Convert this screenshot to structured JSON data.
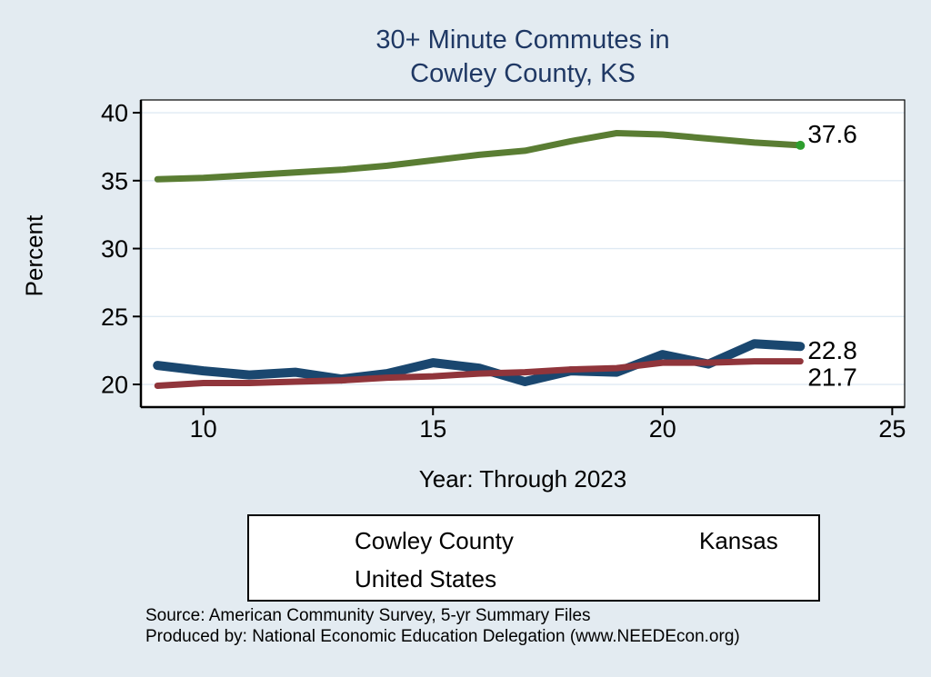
{
  "title": {
    "line1": "30+ Minute Commutes in",
    "line2": "Cowley County, KS"
  },
  "axes": {
    "y_label": "Percent",
    "x_label": "Year: Through 2023",
    "y_ticks": [
      20,
      25,
      30,
      35,
      40
    ],
    "x_ticks": [
      10,
      15,
      20,
      25
    ]
  },
  "chart_data": {
    "type": "line",
    "title": "30+ Minute Commutes in Cowley County, KS",
    "xlabel": "Year: Through 2023",
    "ylabel": "Percent",
    "xlim": [
      8.64,
      25.27
    ],
    "ylim": [
      18.33,
      40.94
    ],
    "grid": true,
    "legend_position": "bottom",
    "x": [
      9,
      10,
      11,
      12,
      13,
      14,
      15,
      16,
      17,
      18,
      19,
      20,
      21,
      22,
      23
    ],
    "series": [
      {
        "name": "Cowley County",
        "color": "#1a476f",
        "line_width": 10,
        "values": [
          21.4,
          21.0,
          20.7,
          20.9,
          20.4,
          20.8,
          21.6,
          21.2,
          20.2,
          21.0,
          20.9,
          22.2,
          21.5,
          23.0,
          22.8
        ],
        "end_label": "22.8"
      },
      {
        "name": "Kansas",
        "color": "#90353b",
        "line_width": 7,
        "values": [
          19.9,
          20.1,
          20.1,
          20.2,
          20.3,
          20.5,
          20.6,
          20.8,
          20.9,
          21.1,
          21.2,
          21.6,
          21.6,
          21.7,
          21.7
        ],
        "end_label": "21.7"
      },
      {
        "name": "United States",
        "color": "#5a7d33",
        "line_width": 7,
        "values": [
          35.1,
          35.2,
          35.4,
          35.6,
          35.8,
          36.1,
          36.5,
          36.9,
          37.2,
          37.9,
          38.5,
          38.4,
          38.1,
          37.8,
          37.6
        ],
        "end_label": "37.6",
        "end_dot_color": "#2e9e2e"
      }
    ]
  },
  "style_colors": {
    "page_background": "#e3ebf1",
    "plot_background": "#ffffff",
    "gridline": "#dfeaf3",
    "axis": "#000000",
    "title_text": "#1f3864"
  },
  "footer": {
    "source_line": "Source: American Community Survey, 5-yr Summary Files",
    "produced_line": "Produced by: National Economic Education Delegation (www.NEEDEcon.org)"
  }
}
